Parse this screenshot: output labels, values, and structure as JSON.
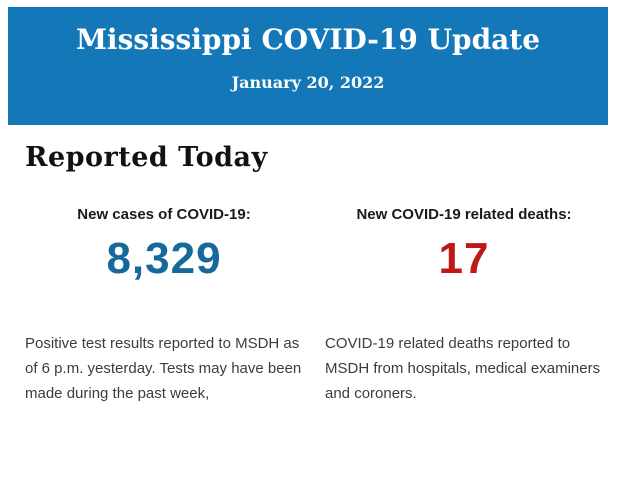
{
  "banner": {
    "title": "Mississippi COVID-19 Update",
    "date": "January 20, 2022"
  },
  "main": {
    "heading": "Reported Today",
    "stats": [
      {
        "id": "new-cases",
        "label": "New cases of COVID-19:",
        "value": "8,329",
        "description": "Positive test results reported to MSDH as of 6 p.m. yesterday. Tests may have been made during the past week,"
      },
      {
        "id": "new-deaths",
        "label": "New COVID-19 related deaths:",
        "value": "17",
        "description": "COVID-19 related deaths reported to MSDH from hospitals, medical examiners and coroners."
      }
    ]
  },
  "colors": {
    "banner-bg": "#1478b8",
    "banner-text": "#ffffff",
    "cases-value": "#17699c",
    "deaths-value": "#c01717",
    "heading-text": "#121212",
    "body-text": "#3c3c3c"
  }
}
